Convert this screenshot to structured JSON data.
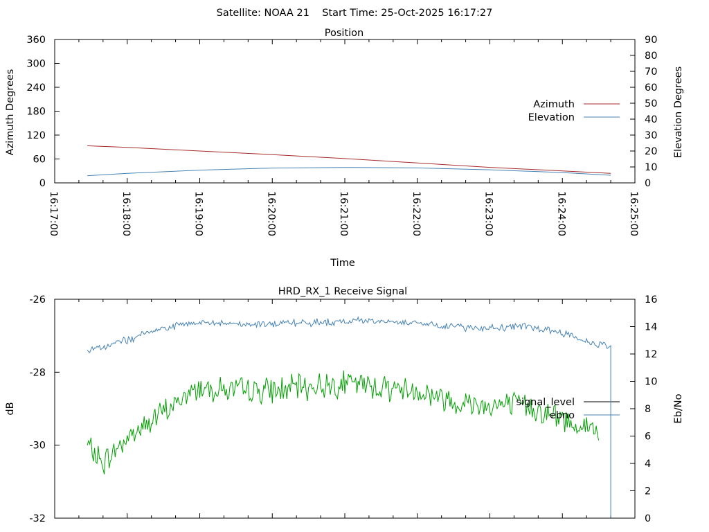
{
  "header": {
    "title": "Satellite: NOAA 21    Start Time: 25-Oct-2025 16:17:27"
  },
  "chart_data": [
    {
      "type": "line",
      "title": "Position",
      "xlabel": "Time",
      "ylabel": "Azimuth Degrees",
      "y2label": "Elevation Degrees",
      "ylim": [
        0,
        360
      ],
      "y2lim": [
        0,
        90
      ],
      "yticks": [
        "0",
        "60",
        "120",
        "180",
        "240",
        "300",
        "360"
      ],
      "y2ticks": [
        "0",
        "10",
        "20",
        "30",
        "40",
        "50",
        "60",
        "70",
        "80",
        "90"
      ],
      "xticks": [
        "16:17:00",
        "16:18:00",
        "16:19:00",
        "16:20:00",
        "16:21:00",
        "16:22:00",
        "16:23:00",
        "16:24:00",
        "16:25:00"
      ],
      "xlim_seconds_since_16:17:00": [
        0,
        480
      ],
      "legend_position": "right",
      "series": [
        {
          "name": "Azimuth",
          "axis": "left",
          "color": "#a52a2a",
          "x": [
            "16:17:27",
            "16:18:00",
            "16:19:00",
            "16:20:00",
            "16:21:00",
            "16:22:00",
            "16:23:00",
            "16:24:00",
            "16:24:40"
          ],
          "values": [
            93,
            89,
            80,
            71,
            61,
            50,
            39,
            30,
            24
          ]
        },
        {
          "name": "Elevation",
          "axis": "right",
          "color": "#4682b4",
          "x": [
            "16:17:27",
            "16:18:00",
            "16:19:00",
            "16:20:00",
            "16:21:00",
            "16:22:00",
            "16:23:00",
            "16:24:00",
            "16:24:40"
          ],
          "values": [
            4.5,
            6.0,
            8.0,
            9.3,
            9.7,
            9.4,
            8.2,
            6.5,
            4.8
          ]
        }
      ]
    },
    {
      "type": "line",
      "title": "HRD_RX_1 Receive Signal",
      "ylabel": "dB",
      "y2label": "Eb/No",
      "ylim": [
        -32,
        -26
      ],
      "y2lim": [
        0,
        16
      ],
      "yticks": [
        "-32",
        "-30",
        "-28",
        "-26"
      ],
      "y2ticks": [
        "0",
        "2",
        "4",
        "6",
        "8",
        "10",
        "12",
        "14",
        "16"
      ],
      "legend_position": "right",
      "series": [
        {
          "name": "signal_level",
          "axis": "left",
          "color": "#00a000",
          "legend_color": "#000000",
          "x": [
            "16:17:27",
            "16:17:40",
            "16:18:00",
            "16:18:30",
            "16:19:00",
            "16:19:30",
            "16:20:00",
            "16:20:30",
            "16:21:00",
            "16:21:30",
            "16:22:00",
            "16:22:30",
            "16:23:00",
            "16:23:30",
            "16:24:00",
            "16:24:30",
            "16:24:40"
          ],
          "values": [
            -30.0,
            -30.5,
            -29.8,
            -29.1,
            -28.4,
            -28.5,
            -28.5,
            -28.4,
            -28.3,
            -28.4,
            -28.5,
            -28.8,
            -28.9,
            -28.9,
            -29.3,
            -29.6,
            -29.8
          ]
        },
        {
          "name": "ebno",
          "axis": "right",
          "color": "#4682b4",
          "x": [
            "16:17:27",
            "16:18:00",
            "16:18:30",
            "16:19:00",
            "16:19:30",
            "16:20:00",
            "16:20:30",
            "16:21:00",
            "16:21:30",
            "16:22:00",
            "16:22:30",
            "16:23:00",
            "16:23:30",
            "16:24:00",
            "16:24:20",
            "16:24:38",
            "16:24:40"
          ],
          "values": [
            12.2,
            13.0,
            13.9,
            14.3,
            14.2,
            14.2,
            14.3,
            14.4,
            14.4,
            14.3,
            14.0,
            13.9,
            14.0,
            13.6,
            12.9,
            12.6,
            0
          ]
        }
      ]
    }
  ]
}
